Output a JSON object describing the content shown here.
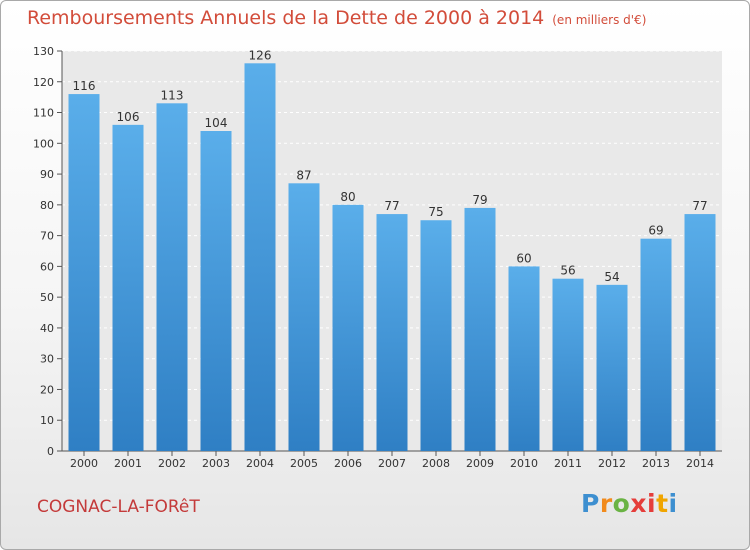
{
  "header": {
    "title": "Remboursements Annuels de la Dette de 2000 à 2014",
    "subtitle": "(en milliers d'€)"
  },
  "footer": {
    "location": "COGNAC-LA-FORêT",
    "logo_text": "Proxiti"
  },
  "colors": {
    "bar_top": "#5aaeea",
    "bar_bottom": "#2f7fc4",
    "title": "#d24c3a"
  },
  "chart_data": {
    "type": "bar",
    "title": "Remboursements Annuels de la Dette de 2000 à 2014",
    "subtitle": "(en milliers d'€)",
    "categories": [
      "2000",
      "2001",
      "2002",
      "2003",
      "2004",
      "2005",
      "2006",
      "2007",
      "2008",
      "2009",
      "2010",
      "2011",
      "2012",
      "2013",
      "2014"
    ],
    "values": [
      116,
      106,
      113,
      104,
      126,
      87,
      80,
      77,
      75,
      79,
      60,
      56,
      54,
      69,
      77
    ],
    "ylim": [
      0,
      130
    ],
    "yticks": [
      0,
      10,
      20,
      30,
      40,
      50,
      60,
      70,
      80,
      90,
      100,
      110,
      120,
      130
    ],
    "grid": true,
    "data_labels": true
  }
}
